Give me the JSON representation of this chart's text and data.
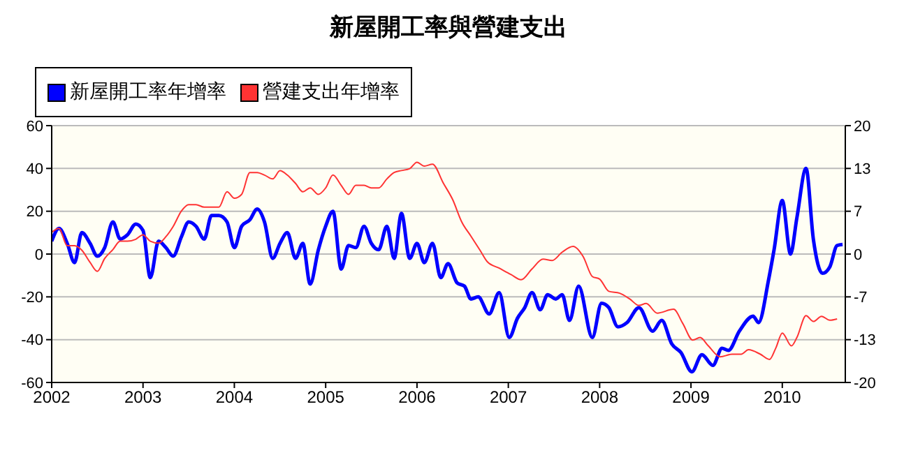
{
  "chart_data": {
    "type": "line",
    "title": "新屋開工率與營建支出",
    "xlim": [
      2002,
      2010.69
    ],
    "xticks": [
      2002,
      2003,
      2004,
      2005,
      2006,
      2007,
      2008,
      2009,
      2010
    ],
    "ylim": [
      -60,
      60
    ],
    "yticks": [
      -60,
      -40,
      -20,
      0,
      20,
      40,
      60
    ],
    "y2lim": [
      -20,
      20
    ],
    "y2ticks": [
      -20,
      {
        "value": -13.333,
        "label": "-13"
      },
      {
        "value": -6.667,
        "label": "-7"
      },
      0,
      {
        "value": 6.667,
        "label": "7"
      },
      {
        "value": 13.333,
        "label": "13"
      },
      20
    ],
    "grid": "y",
    "legend": "top left",
    "marker": "none",
    "line_style": "solid",
    "series": [
      {
        "name": "新屋開工率年增率",
        "color": "#0000ff",
        "x": [
          2002,
          2002.08,
          2002.17,
          2002.25,
          2002.33,
          2002.42,
          2002.5,
          2002.58,
          2002.67,
          2002.75,
          2002.83,
          2002.92,
          2003,
          2003.08,
          2003.17,
          2003.25,
          2003.33,
          2003.42,
          2003.5,
          2003.58,
          2003.67,
          2003.75,
          2003.83,
          2003.92,
          2004,
          2004.08,
          2004.17,
          2004.25,
          2004.33,
          2004.42,
          2004.5,
          2004.58,
          2004.67,
          2004.75,
          2004.83,
          2004.92,
          2005,
          2005.08,
          2005.17,
          2005.25,
          2005.33,
          2005.42,
          2005.5,
          2005.58,
          2005.67,
          2005.75,
          2005.83,
          2005.92,
          2006,
          2006.08,
          2006.17,
          2006.26,
          2006.34,
          2006.44,
          2006.52,
          2006.59,
          2006.67,
          2006.79,
          2006.9,
          2007.01,
          2007.1,
          2007.18,
          2007.26,
          2007.35,
          2007.43,
          2007.52,
          2007.59,
          2007.67,
          2007.77,
          2007.92,
          2008.02,
          2008.1,
          2008.2,
          2008.3,
          2008.43,
          2008.58,
          2008.68,
          2008.79,
          2008.89,
          2009.01,
          2009.12,
          2009.24,
          2009.34,
          2009.41,
          2009.53,
          2009.68,
          2009.74,
          2009.85,
          2009.91,
          2010,
          2010.09,
          2010.16,
          2010.26,
          2010.34,
          2010.44,
          2010.52,
          2010.6,
          2010.66
        ],
        "values": [
          6,
          12,
          5,
          -4,
          10,
          5,
          -1,
          3,
          15,
          7,
          9,
          14,
          11,
          -11,
          6,
          3,
          -1,
          8,
          15,
          13,
          7,
          18,
          18,
          15,
          3,
          13,
          16,
          21,
          15,
          -2,
          5,
          10,
          -2,
          5,
          -14,
          2,
          13,
          20,
          -7,
          4,
          3,
          13,
          5,
          2,
          13,
          -2,
          19,
          -2,
          5,
          -4,
          5,
          -11,
          -4.5,
          -13.5,
          -15,
          -21,
          -20,
          -28,
          -18,
          -39,
          -30,
          -25,
          -18,
          -26,
          -19,
          -21,
          -19,
          -31,
          -15,
          -39,
          -23,
          -25,
          -34,
          -32,
          -25,
          -36,
          -31,
          -42,
          -46,
          -55,
          -47,
          -52,
          -44,
          -45,
          -36,
          -29,
          -32,
          -12,
          2,
          25,
          0,
          17,
          40,
          7,
          -9,
          -6,
          4,
          4.5
        ]
      },
      {
        "name": "營建支出年增率",
        "color": "#ff3333",
        "axis": "y2",
        "x": [
          2002,
          2002.08,
          2002.17,
          2002.25,
          2002.33,
          2002.42,
          2002.5,
          2002.58,
          2002.67,
          2002.75,
          2002.83,
          2002.92,
          2003,
          2003.08,
          2003.17,
          2003.25,
          2003.33,
          2003.42,
          2003.5,
          2003.58,
          2003.67,
          2003.75,
          2003.83,
          2003.92,
          2004,
          2004.08,
          2004.17,
          2004.25,
          2004.33,
          2004.42,
          2004.5,
          2004.58,
          2004.67,
          2004.75,
          2004.83,
          2004.92,
          2005,
          2005.08,
          2005.17,
          2005.25,
          2005.33,
          2005.42,
          2005.5,
          2005.58,
          2005.67,
          2005.75,
          2005.83,
          2005.92,
          2006,
          2006.08,
          2006.17,
          2006.29,
          2006.39,
          2006.49,
          2006.59,
          2006.69,
          2006.77,
          2006.9,
          2007.03,
          2007.14,
          2007.26,
          2007.38,
          2007.48,
          2007.59,
          2007.71,
          2007.82,
          2007.92,
          2008,
          2008.1,
          2008.22,
          2008.33,
          2008.43,
          2008.51,
          2008.63,
          2008.81,
          2008.91,
          2009.02,
          2009.1,
          2009.19,
          2009.32,
          2009.45,
          2009.55,
          2009.63,
          2009.76,
          2009.86,
          2009.93,
          2010,
          2010.1,
          2010.16,
          2010.26,
          2010.34,
          2010.43,
          2010.52,
          2010.6
        ],
        "values": [
          3.4,
          4,
          1.3,
          1.3,
          0.6,
          -1.3,
          -2.7,
          -0.7,
          0.7,
          2,
          2,
          2.3,
          3,
          2,
          1.7,
          2.7,
          4.3,
          6.7,
          7.7,
          7.7,
          7.3,
          7.3,
          7.3,
          9.7,
          8.7,
          9.3,
          12.7,
          12.7,
          12.3,
          11.7,
          13,
          12.3,
          11,
          9.7,
          10.3,
          9.3,
          10.3,
          12.3,
          10.7,
          9.3,
          10.7,
          10.7,
          10.3,
          10.3,
          11.7,
          12.7,
          13,
          13.3,
          14.3,
          13.7,
          14,
          11,
          8.5,
          5,
          2.8,
          0.6,
          -1.2,
          -2.2,
          -3.2,
          -4,
          -2.3,
          -0.8,
          -1,
          0.3,
          1.2,
          -0.4,
          -3.5,
          -3.9,
          -5.8,
          -6.1,
          -7,
          -8,
          -7.7,
          -9.2,
          -8.6,
          -10.8,
          -13.4,
          -13,
          -14.3,
          -16,
          -15.6,
          -15.6,
          -14.9,
          -15.6,
          -16.4,
          -14.6,
          -12.3,
          -14.3,
          -13,
          -9.6,
          -10.5,
          -9.7,
          -10.3,
          -10.1
        ]
      }
    ]
  }
}
